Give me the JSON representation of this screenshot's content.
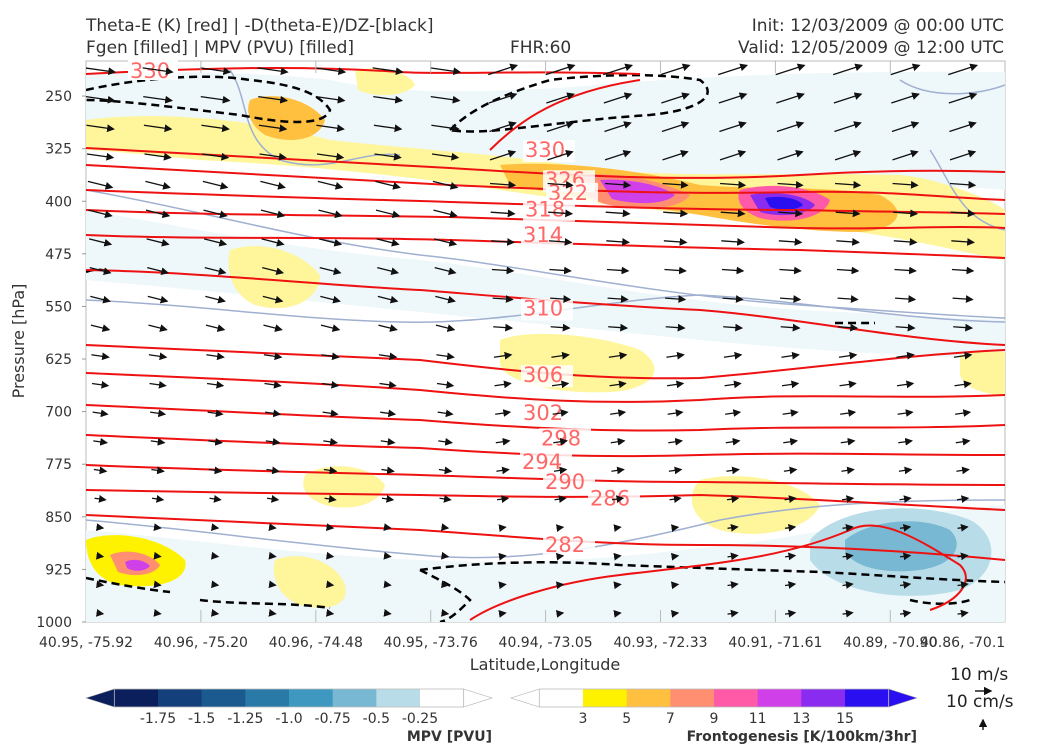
{
  "header": {
    "title_line1": "Theta-E (K) [red] | -D(theta-E)/DZ-[black]",
    "title_line2": "Fgen [filled] | MPV (PVU) [filled]",
    "fhr": "FHR:60",
    "init": "Init: 12/03/2009 @ 00:00 UTC",
    "valid": "Valid: 12/05/2009 @ 12:00 UTC"
  },
  "chart_data": {
    "type": "cross-section",
    "title": "Theta-E (K) [red] | -D(theta-E)/DZ-[black] / Fgen [filled] | MPV (PVU) [filled]",
    "xlabel": "Latitude,Longitude",
    "ylabel": "Pressure [hPa]",
    "x_ticks": [
      "40.95, -75.92",
      "40.96, -75.20",
      "40.96, -74.48",
      "40.95, -73.76",
      "40.94, -73.05",
      "40.93, -72.33",
      "40.91, -71.61",
      "40.89, -70.90",
      "40.86, -70.1"
    ],
    "y_ticks": [
      250,
      325,
      400,
      475,
      550,
      625,
      700,
      775,
      850,
      925,
      1000
    ],
    "ylim": [
      200,
      1000
    ],
    "theta_e_contours": [
      {
        "label": 330,
        "pressure_at_label": 337
      },
      {
        "label": 326,
        "pressure_at_label": 380
      },
      {
        "label": 322,
        "pressure_at_label": 398
      },
      {
        "label": 318,
        "pressure_at_label": 422
      },
      {
        "label": 314,
        "pressure_at_label": 458
      },
      {
        "label": 310,
        "pressure_at_label": 563
      },
      {
        "label": 306,
        "pressure_at_label": 658
      },
      {
        "label": 302,
        "pressure_at_label": 712
      },
      {
        "label": 298,
        "pressure_at_label": 748
      },
      {
        "label": 294,
        "pressure_at_label": 782
      },
      {
        "label": 290,
        "pressure_at_label": 810
      },
      {
        "label": 286,
        "pressure_at_label": 834
      },
      {
        "label": 282,
        "pressure_at_label": 900
      }
    ],
    "quiver_key": {
      "horizontal": "10 m/s",
      "vertical": "10 cm/s"
    },
    "colorbars": [
      {
        "title": "MPV [PVU]",
        "ticks": [
          "-1.75",
          "-1.5",
          "-1.25",
          "-1.0",
          "-0.75",
          "-0.5",
          "-0.25"
        ],
        "colors": [
          "#0a1f5c",
          "#133f7a",
          "#1b5a8f",
          "#2a7aa8",
          "#3f98bf",
          "#78b8d2",
          "#b9dde8",
          "#ffffff"
        ]
      },
      {
        "title": "Frontogenesis [K/100km/3hr]",
        "ticks": [
          "3",
          "5",
          "7",
          "9",
          "11",
          "13",
          "15"
        ],
        "colors": [
          "#ffffff",
          "#fff200",
          "#ffc040",
          "#ff8f70",
          "#ff5aa8",
          "#d040e8",
          "#8a2bf0",
          "#2a10f0"
        ]
      }
    ]
  }
}
